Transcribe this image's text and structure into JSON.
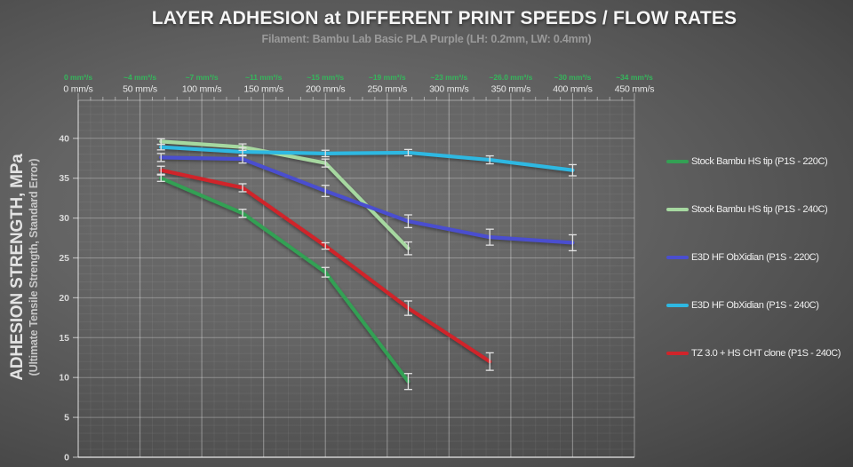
{
  "chart_data": {
    "type": "line",
    "title": "LAYER ADHESION at DIFFERENT PRINT SPEEDS / FLOW RATES",
    "subtitle": "Filament: Bambu Lab Basic PLA Purple (LH: 0.2mm, LW: 0.4mm)",
    "ylabel": "ADHESION STRENGTH, MPa",
    "ylabel_note": "(Ultimate Tensile Strength, Standard Error)",
    "xlim": [
      0,
      450
    ],
    "ylim": [
      0,
      45
    ],
    "y_ticks": [
      0,
      5,
      10,
      15,
      20,
      25,
      30,
      35,
      40
    ],
    "grid": {
      "x_major": 50,
      "x_minor": 10,
      "y_major": 5,
      "y_minor": 1
    },
    "legend_position": "right",
    "top_axis": {
      "speed_ticks": [
        0,
        50,
        100,
        150,
        200,
        250,
        300,
        350,
        400,
        450
      ],
      "flow_labels": [
        "0 mm³/s",
        "~4 mm³/s",
        "~7 mm³/s",
        "~11 mm³/s",
        "~15 mm³/s",
        "~19 mm³/s",
        "~23 mm³/s",
        "~26.0 mm³/s",
        "~30 mm³/s",
        "~34 mm³/s"
      ],
      "speed_labels": [
        "0 mm/s",
        "50 mm/s",
        "100 mm/s",
        "150 mm/s",
        "200 mm/s",
        "250 mm/s",
        "300 mm/s",
        "350 mm/s",
        "400 mm/s",
        "450 mm/s"
      ]
    },
    "x": [
      67,
      133,
      200,
      267,
      333,
      400
    ],
    "x_unit": "mm/s",
    "series": [
      {
        "name": "Stock Bambu HS tip (P1S - 220C)",
        "color": "#33a054",
        "values": [
          35.0,
          30.6,
          23.2,
          9.5,
          null,
          null
        ],
        "errors": [
          0.4,
          0.5,
          0.6,
          1.0,
          null,
          null
        ]
      },
      {
        "name": "Stock Bambu HS tip (P1S - 240C)",
        "color": "#a6d8a0",
        "values": [
          39.6,
          38.9,
          36.9,
          26.2,
          null,
          null
        ],
        "errors": [
          0.35,
          0.4,
          0.5,
          0.8,
          null,
          null
        ]
      },
      {
        "name": "E3D HF ObXidian (P1S - 220C)",
        "color": "#4a4ecf",
        "values": [
          37.6,
          37.4,
          33.4,
          29.6,
          27.6,
          26.9
        ],
        "errors": [
          0.5,
          0.5,
          0.7,
          0.8,
          1.0,
          1.0
        ]
      },
      {
        "name": "E3D HF ObXidian (P1S - 240C)",
        "color": "#2eb8e2",
        "values": [
          38.9,
          38.3,
          38.1,
          38.2,
          37.3,
          36.0
        ],
        "errors": [
          0.35,
          0.5,
          0.4,
          0.4,
          0.5,
          0.7
        ]
      },
      {
        "name": "TZ 3.0 + HS CHT clone (P1S - 240C)",
        "color": "#d0242a",
        "values": [
          36.0,
          33.8,
          26.5,
          18.7,
          12.0,
          null
        ],
        "errors": [
          0.5,
          0.5,
          0.4,
          0.9,
          1.1,
          null
        ]
      }
    ],
    "colors": {
      "flow_label_green": "#35b75c",
      "speed_label_white": "#e9e9e9",
      "error_bar": "#e3e3e3"
    }
  }
}
